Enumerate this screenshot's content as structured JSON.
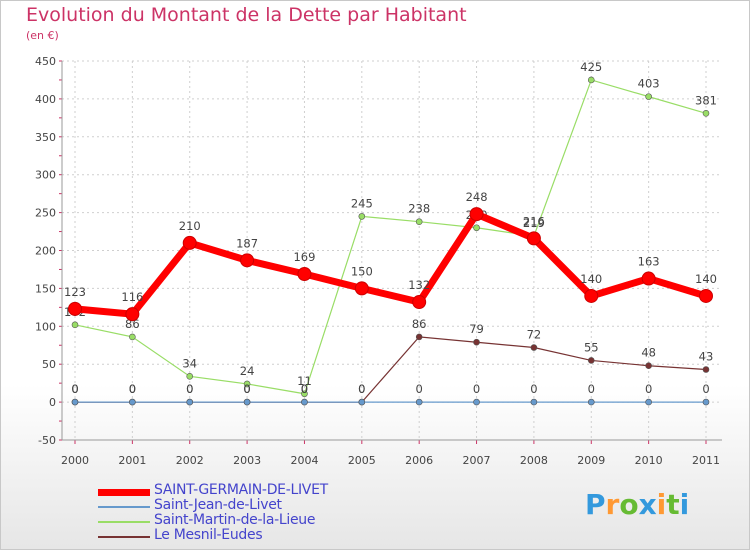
{
  "chart_data": {
    "type": "line",
    "title": "Evolution du Montant de la Dette par Habitant",
    "subtitle": "(en €)",
    "categories": [
      "2000",
      "2001",
      "2002",
      "2003",
      "2004",
      "2005",
      "2006",
      "2007",
      "2008",
      "2009",
      "2010",
      "2011"
    ],
    "ylim": [
      -50,
      450
    ],
    "yticks": [
      -50,
      0,
      50,
      100,
      150,
      200,
      250,
      300,
      350,
      400,
      450
    ],
    "grid": true,
    "series": [
      {
        "name": "SAINT-GERMAIN-DE-LIVET",
        "color": "#ff0000",
        "values": [
          123,
          116,
          210,
          187,
          169,
          150,
          132,
          248,
          216,
          140,
          163,
          140
        ]
      },
      {
        "name": "Saint-Jean-de-Livet",
        "color": "#6699cc",
        "values": [
          0,
          0,
          0,
          0,
          0,
          0,
          0,
          0,
          0,
          0,
          0,
          0
        ]
      },
      {
        "name": "Saint-Martin-de-la-Lieue",
        "color": "#99dd66",
        "values": [
          102,
          86,
          34,
          24,
          11,
          245,
          238,
          230,
          219,
          425,
          403,
          381
        ]
      },
      {
        "name": "Le Mesnil-Eudes",
        "color": "#773333",
        "values": [
          0,
          0,
          0,
          0,
          0,
          0,
          86,
          79,
          72,
          55,
          48,
          43
        ]
      }
    ]
  },
  "brand": {
    "letters": [
      "P",
      "r",
      "o",
      "x",
      "i",
      "t",
      "i"
    ],
    "colors": [
      "#3399dd",
      "#ff9933",
      "#66bb33",
      "#3399dd",
      "#ff9933",
      "#66bb33",
      "#3399dd"
    ]
  }
}
